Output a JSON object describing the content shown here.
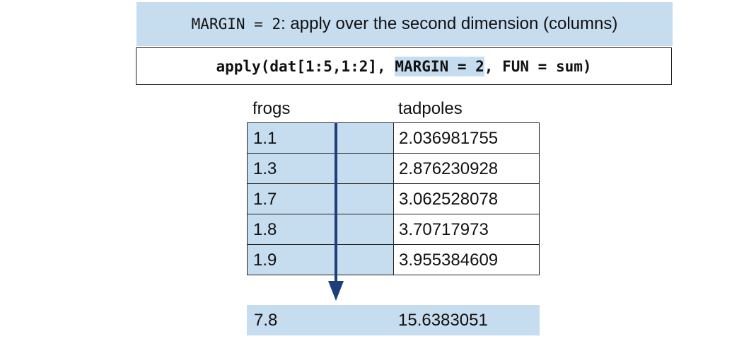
{
  "banner": {
    "code_part": "MARGIN = 2",
    "text_part": ": apply over the second dimension (columns)"
  },
  "code": {
    "before": "apply(dat[1:5,1:2], ",
    "highlight": "MARGIN = 2",
    "after": ", FUN = sum)"
  },
  "table": {
    "headers": [
      "frogs",
      "tadpoles"
    ],
    "rows": [
      [
        "1.1",
        "2.036981755"
      ],
      [
        "1.3",
        "2.876230928"
      ],
      [
        "1.7",
        "3.062528078"
      ],
      [
        "1.8",
        "3.70717973"
      ],
      [
        "1.9",
        "3.955384609"
      ]
    ]
  },
  "result": [
    "7.8",
    "15.6383051"
  ],
  "colors": {
    "highlight": "#c6dcef",
    "arrow": "#1f3f7a",
    "border": "#222222"
  }
}
